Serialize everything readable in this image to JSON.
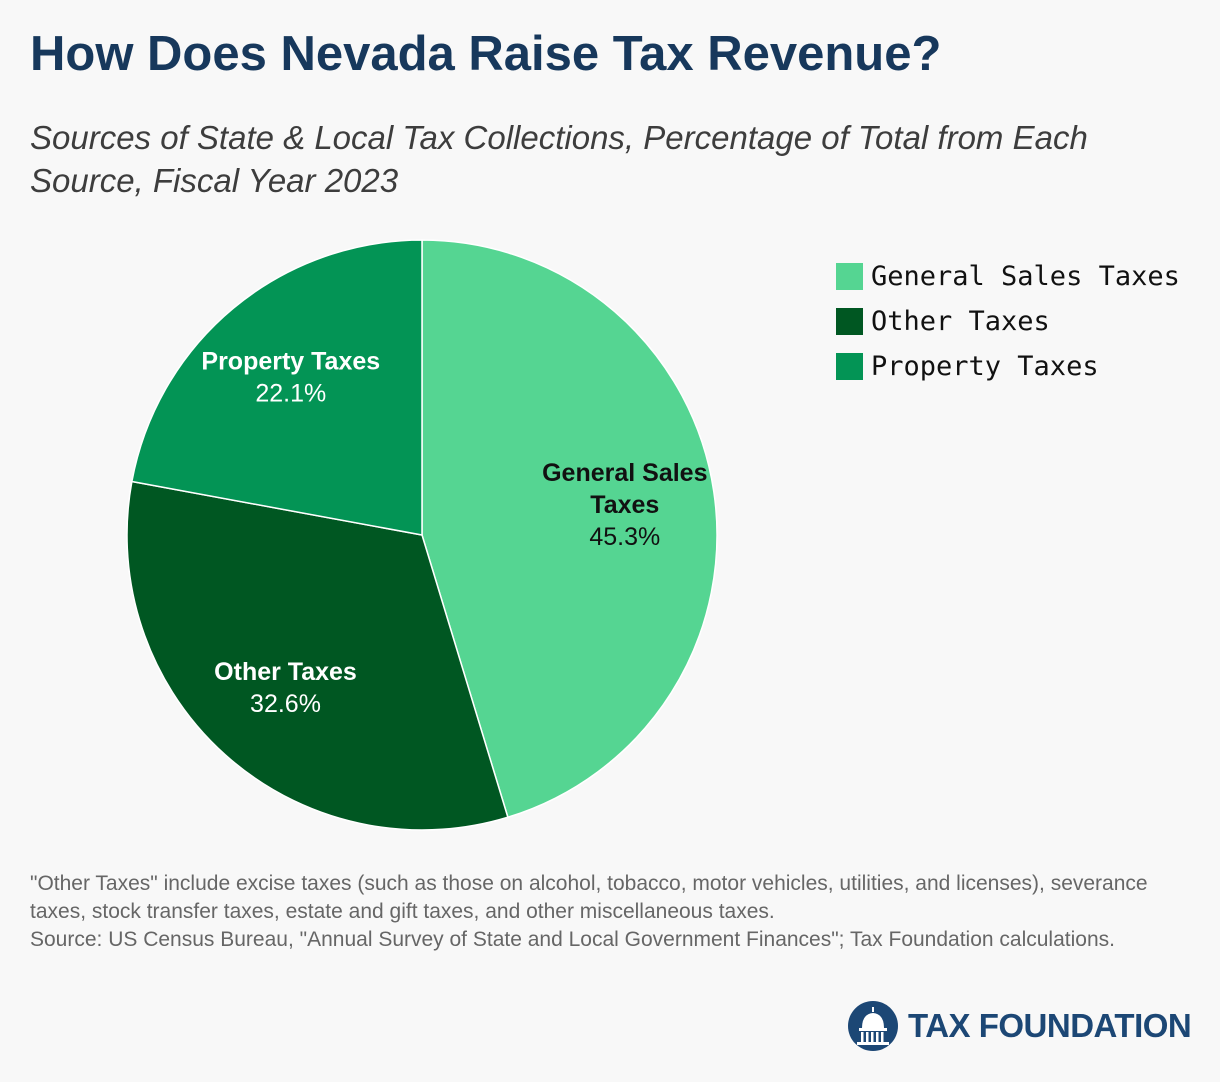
{
  "header": {
    "title": "How Does Nevada Raise Tax Revenue?",
    "subtitle": "Sources of State & Local Tax Collections, Percentage of Total from Each Source, Fiscal Year 2023"
  },
  "chart_data": {
    "type": "pie",
    "slices": [
      {
        "name": "General Sales Taxes",
        "label_lines": [
          "General Sales",
          "Taxes"
        ],
        "value": 45.3,
        "value_label": "45.3%",
        "color": "#55d592",
        "text_color": "#111111"
      },
      {
        "name": "Other Taxes",
        "label_lines": [
          "Other Taxes"
        ],
        "value": 32.6,
        "value_label": "32.6%",
        "color": "#005722",
        "text_color": "#ffffff"
      },
      {
        "name": "Property Taxes",
        "label_lines": [
          "Property Taxes"
        ],
        "value": 22.1,
        "value_label": "22.1%",
        "color": "#039455",
        "text_color": "#ffffff"
      }
    ],
    "start_angle": "12 o'clock",
    "direction": "clockwise",
    "legend": {
      "placement": "top-right",
      "items": [
        {
          "label": "General Sales Taxes",
          "color": "#55d592"
        },
        {
          "label": "Other Taxes",
          "color": "#005722"
        },
        {
          "label": "Property Taxes",
          "color": "#039455"
        }
      ]
    }
  },
  "footnote": {
    "note": "\"Other Taxes\" include excise taxes (such as those on alcohol, tobacco, motor vehicles, utilities, and licenses), severance taxes, stock transfer taxes, estate and gift taxes, and other miscellaneous taxes.",
    "source": "Source: US Census Bureau, \"Annual Survey of State and Local Government Finances\"; Tax Foundation calculations."
  },
  "logo": {
    "icon": "capitol-dome-icon",
    "text": "TAX FOUNDATION"
  }
}
